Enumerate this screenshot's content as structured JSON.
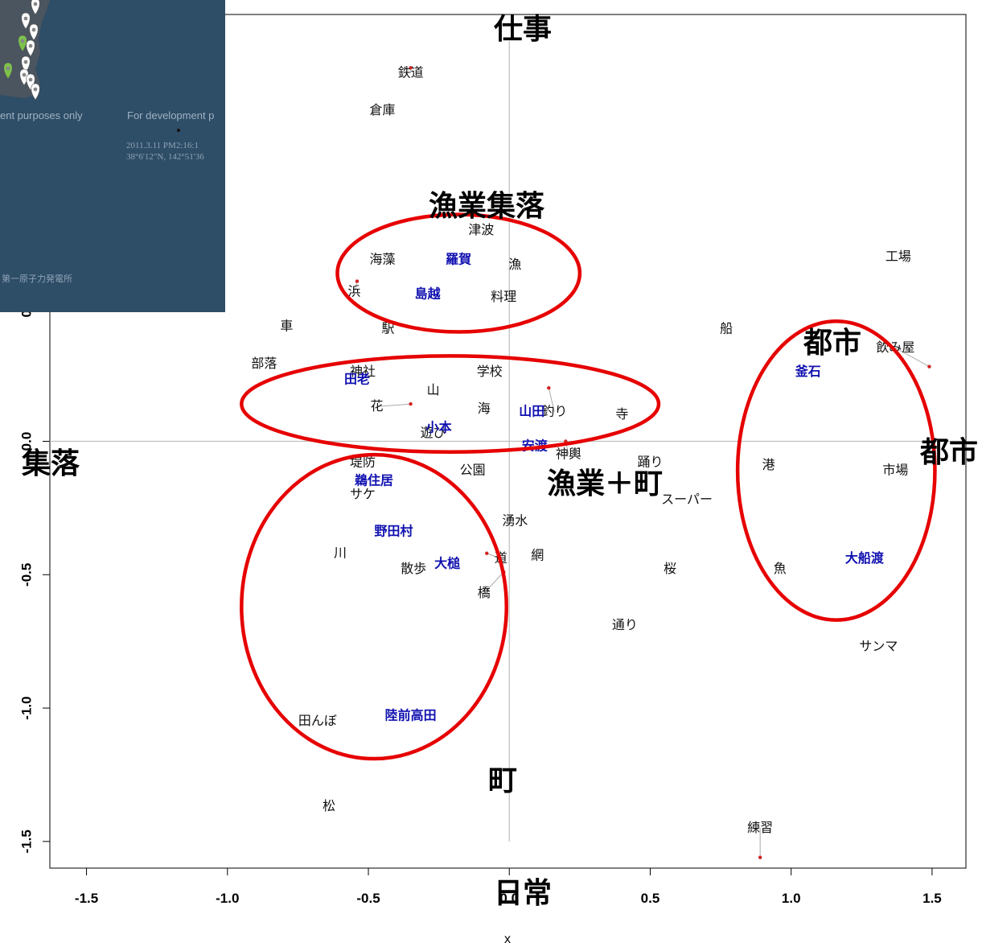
{
  "chart_data": {
    "type": "scatter",
    "xlabel": "x",
    "xlim": [
      -1.63,
      1.62
    ],
    "ylim": [
      -1.6,
      1.6
    ],
    "xticks": [
      -1.5,
      -1.0,
      -0.5,
      0.0,
      0.5,
      1.0,
      1.5
    ],
    "xtick_labels": [
      "-1.5",
      "-1.0",
      "-0.5",
      "0.0",
      "0.5",
      "1.0",
      "1.5"
    ],
    "yticks": [
      -1.5,
      -1.0,
      -0.5,
      0.0,
      0.5
    ],
    "ytick_labels": [
      "-1.5",
      "-1.0",
      "-0.5",
      "0.0",
      "0.5"
    ],
    "reference_lines": {
      "x": 0.0,
      "y": 0.0,
      "y_extent": [
        -1.5,
        1.5
      ]
    },
    "words": [
      {
        "text": "鉄道",
        "x": -0.35,
        "y": 1.38,
        "px": -0.35,
        "py": 1.4
      },
      {
        "text": "倉庫",
        "x": -0.45,
        "y": 1.24
      },
      {
        "text": "津波",
        "x": -0.1,
        "y": 0.79
      },
      {
        "text": "海藻",
        "x": -0.45,
        "y": 0.68
      },
      {
        "text": "漁",
        "x": 0.02,
        "y": 0.66
      },
      {
        "text": "浜",
        "x": -0.55,
        "y": 0.56,
        "px": -0.54,
        "py": 0.6
      },
      {
        "text": "料理",
        "x": -0.02,
        "y": 0.54
      },
      {
        "text": "車",
        "x": -0.79,
        "y": 0.43
      },
      {
        "text": "駅",
        "x": -0.43,
        "y": 0.42
      },
      {
        "text": "船",
        "x": 0.77,
        "y": 0.42
      },
      {
        "text": "飲み屋",
        "x": 1.37,
        "y": 0.35,
        "px": 1.49,
        "py": 0.28
      },
      {
        "text": "部落",
        "x": -0.87,
        "y": 0.29
      },
      {
        "text": "神社",
        "x": -0.52,
        "y": 0.26
      },
      {
        "text": "学校",
        "x": -0.07,
        "y": 0.26
      },
      {
        "text": "山",
        "x": -0.27,
        "y": 0.19
      },
      {
        "text": "花",
        "x": -0.47,
        "y": 0.13,
        "px": -0.35,
        "py": 0.14
      },
      {
        "text": "海",
        "x": -0.09,
        "y": 0.12
      },
      {
        "text": "釣り",
        "x": 0.16,
        "y": 0.11,
        "px": 0.14,
        "py": 0.2
      },
      {
        "text": "寺",
        "x": 0.4,
        "y": 0.1
      },
      {
        "text": "遊び",
        "x": -0.27,
        "y": 0.03
      },
      {
        "text": "神輿",
        "x": 0.21,
        "y": -0.05,
        "px": 0.2,
        "py": 0.0
      },
      {
        "text": "踊り",
        "x": 0.5,
        "y": -0.08
      },
      {
        "text": "港",
        "x": 0.92,
        "y": -0.09
      },
      {
        "text": "市場",
        "x": 1.37,
        "y": -0.11
      },
      {
        "text": "堤防",
        "x": -0.52,
        "y": -0.08
      },
      {
        "text": "公園",
        "x": -0.13,
        "y": -0.11
      },
      {
        "text": "スーパー",
        "x": 0.63,
        "y": -0.22
      },
      {
        "text": "サケ",
        "x": -0.52,
        "y": -0.2
      },
      {
        "text": "湧水",
        "x": 0.02,
        "y": -0.3
      },
      {
        "text": "川",
        "x": -0.6,
        "y": -0.42
      },
      {
        "text": "網",
        "x": 0.1,
        "y": -0.43
      },
      {
        "text": "道",
        "x": -0.03,
        "y": -0.44,
        "px": -0.08,
        "py": -0.42
      },
      {
        "text": "散歩",
        "x": -0.34,
        "y": -0.48
      },
      {
        "text": "桜",
        "x": 0.57,
        "y": -0.48
      },
      {
        "text": "魚",
        "x": 0.96,
        "y": -0.48
      },
      {
        "text": "橋",
        "x": -0.09,
        "y": -0.57,
        "px": -0.02,
        "py": -0.49
      },
      {
        "text": "通り",
        "x": 0.41,
        "y": -0.69
      },
      {
        "text": "サンマ",
        "x": 1.31,
        "y": -0.77
      },
      {
        "text": "田んぼ",
        "x": -0.68,
        "y": -1.05
      },
      {
        "text": "松",
        "x": -0.64,
        "y": -1.37
      },
      {
        "text": "練習",
        "x": 0.89,
        "y": -1.45,
        "px": 0.89,
        "py": -1.56
      },
      {
        "text": "工場",
        "x": 1.38,
        "y": 0.69
      }
    ],
    "places": [
      {
        "text": "羅賀",
        "x": -0.18,
        "y": 0.68
      },
      {
        "text": "島越",
        "x": -0.29,
        "y": 0.55
      },
      {
        "text": "田老",
        "x": -0.54,
        "y": 0.23
      },
      {
        "text": "山田",
        "x": 0.08,
        "y": 0.11
      },
      {
        "text": "小本",
        "x": -0.25,
        "y": 0.05
      },
      {
        "text": "安渡",
        "x": 0.09,
        "y": -0.02
      },
      {
        "text": "鵜住居",
        "x": -0.48,
        "y": -0.15
      },
      {
        "text": "野田村",
        "x": -0.41,
        "y": -0.34
      },
      {
        "text": "大槌",
        "x": -0.22,
        "y": -0.46
      },
      {
        "text": "陸前高田",
        "x": -0.35,
        "y": -1.03
      },
      {
        "text": "釜石",
        "x": 1.06,
        "y": 0.26
      },
      {
        "text": "大船渡",
        "x": 1.26,
        "y": -0.44
      }
    ],
    "annotations": {
      "top": "仕事",
      "bottom": "日常",
      "left": "集落",
      "right": "都市",
      "groups": [
        {
          "label": "漁業集落",
          "cx": -0.18,
          "cy": 0.63,
          "rx": 0.43,
          "ry": 0.22
        },
        {
          "label": "漁業＋町",
          "cx": -0.21,
          "cy": 0.14,
          "rx": 0.74,
          "ry": 0.18
        },
        {
          "label": "町",
          "cx": -0.48,
          "cy": -0.62,
          "rx": 0.47,
          "ry": 0.57
        },
        {
          "label": "都市",
          "cx": 1.16,
          "cy": -0.11,
          "rx": 0.35,
          "ry": 0.56
        }
      ]
    }
  },
  "inset_map": {
    "watermark_left": "ent purposes only",
    "watermark_right": "For development p",
    "timestamp": "2011.3.11 PM2:16:1",
    "coords": "38°6'12\"N, 142°51'36",
    "plant": "第一原子力発電所",
    "colors": {
      "sea": "#2e4d66",
      "land": "#4a5560",
      "marker_green": "#7cc24b",
      "marker_white": "#ffffff"
    }
  },
  "colors": {
    "ellipse": "#e60000",
    "place": "#1010b0",
    "point": "#d22222",
    "axis": "#bfbfbf"
  }
}
